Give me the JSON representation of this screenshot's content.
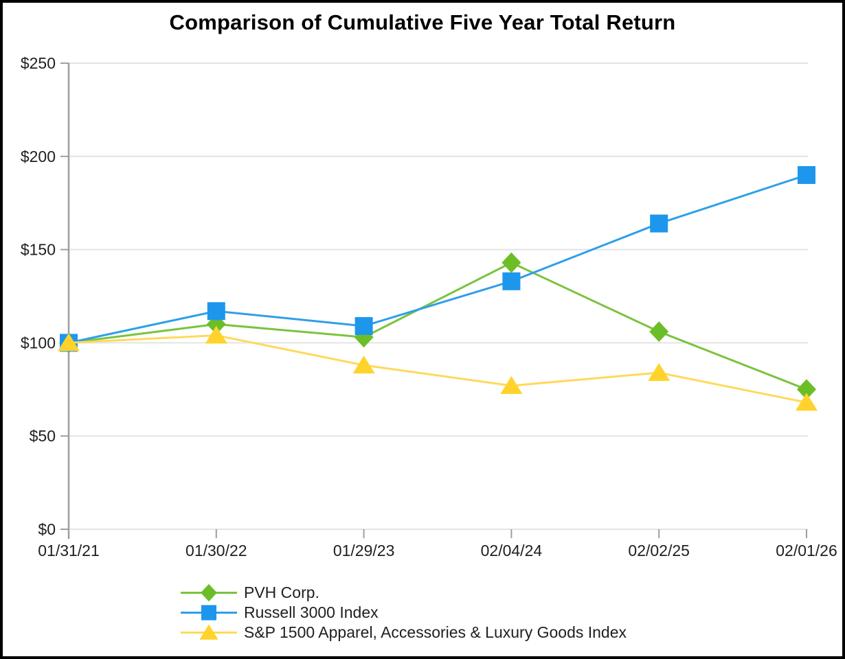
{
  "title": "Comparison of Cumulative Five Year Total Return",
  "colors": {
    "background": "#FFFFFF",
    "frame_border": "#000000",
    "grid": "#E3E3E3",
    "axis": "#9E9E9E",
    "text": "#202020",
    "title_text": "#000000",
    "pvh_green": "#6CBE28",
    "russell_blue": "#1E96EC",
    "sp_yellow": "#FFD32B"
  },
  "chart_data": {
    "type": "line",
    "title": "Comparison of Cumulative Five Year Total Return",
    "categories": [
      "01/31/21",
      "01/30/22",
      "01/29/23",
      "02/04/24",
      "02/02/25",
      "02/01/26"
    ],
    "series": [
      {
        "name": "PVH Corp.",
        "marker": "diamond",
        "color": "#6CBE28",
        "line_color": "#79C43E",
        "values": [
          100,
          110,
          103,
          143,
          106,
          75
        ]
      },
      {
        "name": "Russell 3000 Index",
        "marker": "square",
        "color": "#1E96EC",
        "line_color": "#2E9FE8",
        "values": [
          100,
          117,
          109,
          133,
          164,
          190
        ]
      },
      {
        "name": "S&P 1500 Apparel, Accessories & Luxury Goods Index",
        "marker": "triangle",
        "color": "#FFD32B",
        "line_color": "#FFD95A",
        "values": [
          100,
          104,
          88,
          77,
          84,
          68
        ]
      }
    ],
    "y_axis": {
      "min": 0,
      "max": 250,
      "step": 50,
      "currency_prefix": "$",
      "tick_labels": [
        "$0",
        "$50",
        "$100",
        "$150",
        "$200",
        "$250"
      ]
    },
    "grid": true,
    "legend_position": "bottom-left"
  }
}
